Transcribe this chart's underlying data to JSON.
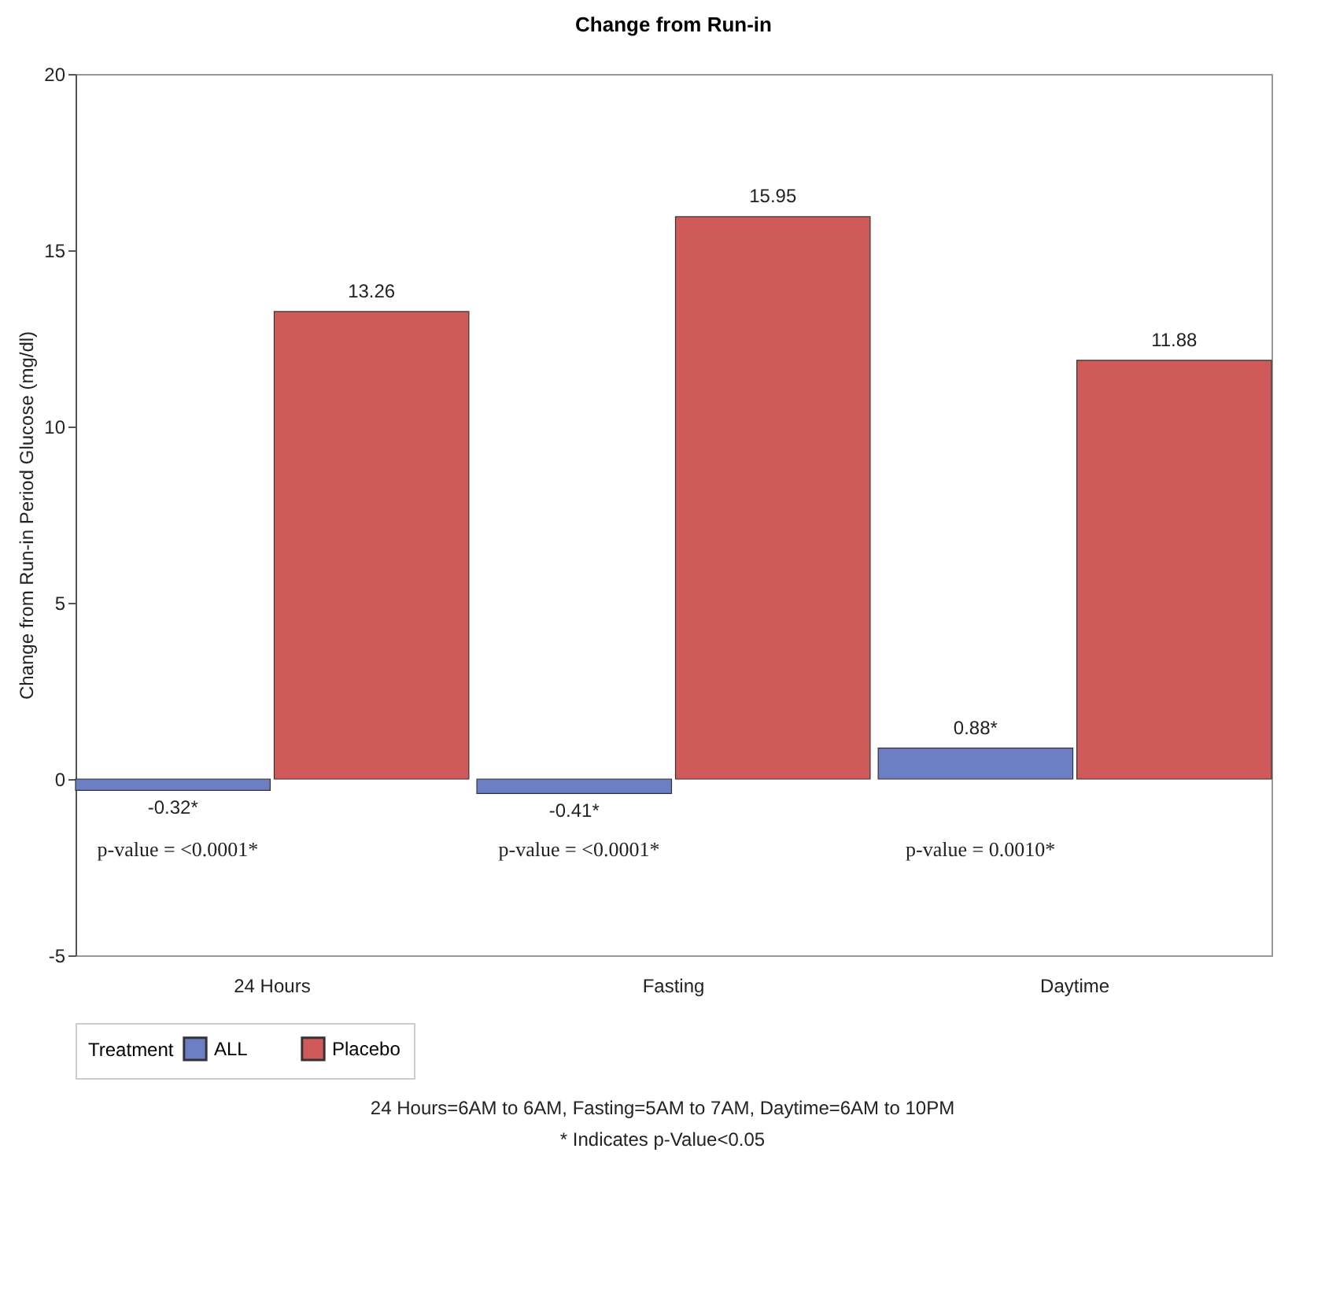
{
  "chart_data": {
    "type": "bar",
    "title": "Change from Run-in",
    "ylabel": "Change from Run-in Period Glucose (mg/dl)",
    "categories": [
      "24 Hours",
      "Fasting",
      "Daytime"
    ],
    "series": [
      {
        "name": "ALL",
        "color": "#6d7fc4",
        "values": [
          -0.32,
          -0.41,
          0.88
        ],
        "value_labels": [
          "-0.32*",
          "-0.41*",
          "0.88*"
        ]
      },
      {
        "name": "Placebo",
        "color": "#d05a5a",
        "values": [
          13.26,
          15.95,
          11.88
        ],
        "value_labels": [
          "13.26",
          "15.95",
          "11.88"
        ]
      }
    ],
    "ylim": [
      -5,
      20
    ],
    "yticks": [
      -5,
      0,
      5,
      10,
      15,
      20
    ],
    "legend_title": "Treatment",
    "legend": "bottom",
    "grid": false,
    "annotations": [
      "p-value = <0.0001*",
      "p-value = <0.0001*",
      "p-value = 0.0010*",
      "24 Hours=6AM to 6AM, Fasting=5AM to 7AM, Daytime=6AM to 10PM",
      "* Indicates p-Value<0.05"
    ]
  }
}
